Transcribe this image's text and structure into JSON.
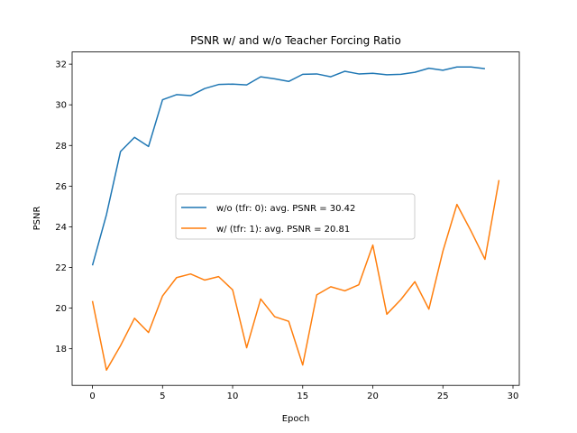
{
  "chart_data": {
    "type": "line",
    "title": "PSNR w/ and w/o Teacher Forcing Ratio",
    "xlabel": "Epoch",
    "ylabel": "PSNR",
    "xlim": [
      -1.45,
      30.45
    ],
    "ylim": [
      16.2,
      32.6
    ],
    "xticks": [
      0,
      5,
      10,
      15,
      20,
      25,
      30
    ],
    "yticks": [
      18,
      20,
      22,
      24,
      26,
      28,
      30,
      32
    ],
    "grid": false,
    "legend_position": "center",
    "series": [
      {
        "name": "w/o (tfr: 0): avg. PSNR = 30.42",
        "color": "#1f77b4",
        "x": [
          0,
          1,
          2,
          3,
          4,
          5,
          6,
          7,
          8,
          9,
          10,
          11,
          12,
          13,
          14,
          15,
          16,
          17,
          18,
          19,
          20,
          21,
          22,
          23,
          24,
          25,
          26,
          27,
          28
        ],
        "values": [
          22.1,
          24.6,
          27.7,
          28.4,
          27.95,
          30.25,
          30.5,
          30.45,
          30.8,
          31.0,
          31.02,
          30.98,
          31.38,
          31.28,
          31.15,
          31.5,
          31.52,
          31.38,
          31.65,
          31.52,
          31.55,
          31.48,
          31.5,
          31.6,
          31.8,
          31.7,
          31.86,
          31.86,
          31.78
        ]
      },
      {
        "name": "w/ (tfr: 1): avg. PSNR = 20.81",
        "color": "#ff7f0e",
        "x": [
          0,
          1,
          2,
          3,
          4,
          5,
          6,
          7,
          8,
          9,
          10,
          11,
          12,
          13,
          14,
          15,
          16,
          17,
          18,
          19,
          20,
          21,
          22,
          23,
          24,
          25,
          26,
          27,
          28,
          29
        ],
        "values": [
          20.35,
          16.95,
          18.15,
          19.5,
          18.8,
          20.6,
          21.5,
          21.68,
          21.38,
          21.55,
          20.9,
          18.05,
          20.45,
          19.58,
          19.35,
          17.2,
          20.65,
          21.05,
          20.85,
          21.15,
          23.1,
          19.7,
          20.42,
          21.3,
          19.95,
          22.8,
          25.1,
          23.8,
          22.4,
          26.3
        ]
      }
    ]
  }
}
